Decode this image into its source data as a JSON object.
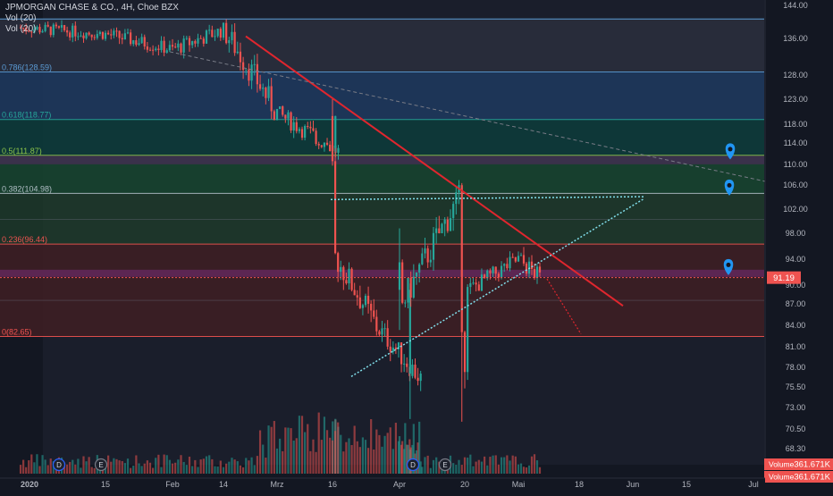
{
  "header": {
    "symbol_line": "JPMORGAN CHASE & CO., 4H, Choe BZX",
    "indicator_1": "Vol (20)",
    "indicator_2": "Vol (20)"
  },
  "price_tag": {
    "value": "91.19",
    "color": "#ef5350"
  },
  "volume_tags": [
    {
      "label": "Volume",
      "value": "361.671K"
    },
    {
      "label": "Volume",
      "value": "361.671K"
    }
  ],
  "event_markers": [
    {
      "kind": "dividend-icon",
      "letter": "D"
    },
    {
      "kind": "earnings-icon",
      "letter": "E"
    },
    {
      "kind": "dividend-icon",
      "letter": "D"
    },
    {
      "kind": "earnings-icon",
      "letter": "E"
    }
  ],
  "chart_data": {
    "type": "candlestick",
    "title": "JPMORGAN CHASE & CO., 4H, Choe BZX",
    "x_ticks": [
      "2020",
      "15",
      "Feb",
      "14",
      "Mrz",
      "16",
      "Apr",
      "20",
      "Mai",
      "18",
      "Jun",
      "15",
      "Jul"
    ],
    "y_ticks": [
      "144.00",
      "136.00",
      "128.00",
      "123.00",
      "118.00",
      "114.00",
      "110.00",
      "106.00",
      "102.00",
      "98.00",
      "94.00",
      "90.00",
      "87.00",
      "84.00",
      "81.00",
      "78.00",
      "75.50",
      "73.00",
      "70.50",
      "68.30"
    ],
    "y_scale": "log",
    "last_price": 91.19,
    "fibonacci_levels": [
      {
        "label": "0.786(128.59)",
        "value": 128.59
      },
      {
        "label": "0.618(118.77)",
        "value": 118.77
      },
      {
        "label": "0.5(111.87)",
        "value": 111.87
      },
      {
        "label": "0.382(104.98)",
        "value": 104.98
      },
      {
        "label": "0.236(96.44)",
        "value": 96.44
      },
      {
        "label": "0(82.65)",
        "value": 82.65
      }
    ],
    "price_path": [
      [
        "2020",
        138.5
      ],
      [
        "15",
        137.0
      ],
      [
        "Feb",
        133.5
      ],
      [
        "14",
        138.0
      ],
      [
        "Mrz",
        120.0
      ],
      [
        "Mrz",
        112.5
      ],
      [
        "16",
        95.0
      ],
      [
        "16",
        84.0
      ],
      [
        "16",
        77.0
      ],
      [
        "Apr",
        86.5
      ],
      [
        "Apr",
        104.0
      ],
      [
        "20",
        89.0
      ],
      [
        "Mai",
        94.0
      ],
      [
        "Mai",
        91.19
      ]
    ],
    "volume": {
      "indicator": "Vol (20)",
      "last_value": "361.671K"
    },
    "grid": false,
    "legend": "top-left"
  }
}
